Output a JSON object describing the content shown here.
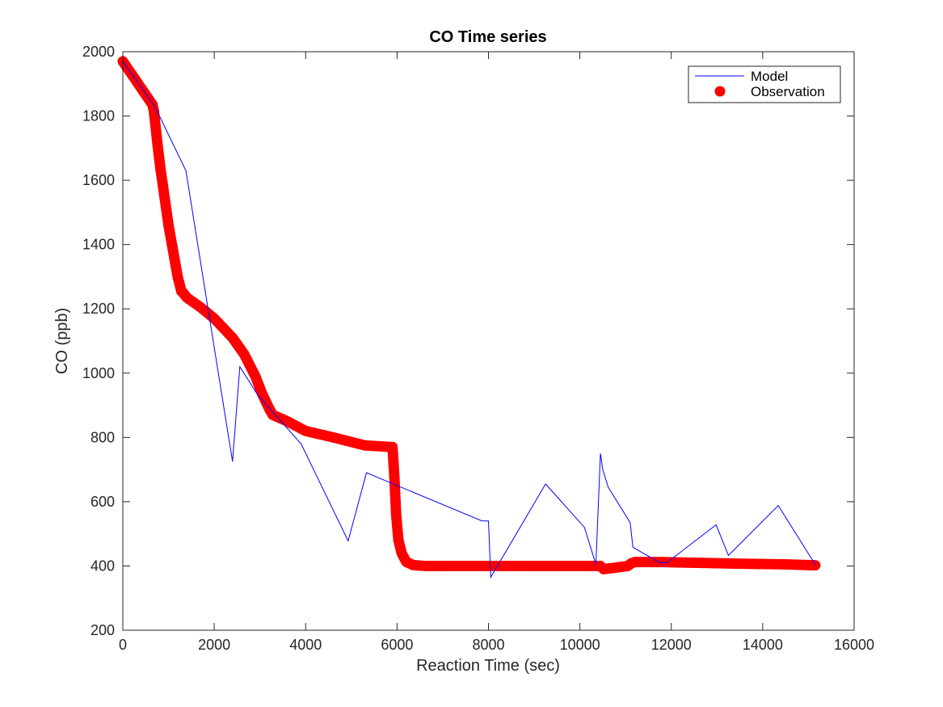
{
  "chart_data": {
    "type": "line",
    "title": "CO Time series",
    "xlabel": "Reaction Time (sec)",
    "ylabel": "CO (ppb)",
    "xlim": [
      0,
      16000
    ],
    "ylim": [
      200,
      2000
    ],
    "xticks": [
      0,
      2000,
      4000,
      6000,
      8000,
      10000,
      12000,
      14000,
      16000
    ],
    "yticks": [
      200,
      400,
      600,
      800,
      1000,
      1200,
      1400,
      1600,
      1800,
      2000
    ],
    "grid": false,
    "legend_position": "top-right",
    "series": [
      {
        "name": "Model",
        "style": "line",
        "color": "#0000ff",
        "x": [
          0,
          700,
          1380,
          2400,
          2560,
          2960,
          3900,
          4930,
          5330,
          7860,
          8000,
          8050,
          9250,
          10100,
          10350,
          10450,
          10500,
          10620,
          11100,
          11160,
          11750,
          11900,
          12980,
          13250,
          14340,
          15160
        ],
        "y": [
          1970,
          1830,
          1630,
          725,
          1020,
          930,
          780,
          478,
          690,
          540,
          540,
          365,
          655,
          520,
          405,
          750,
          700,
          645,
          535,
          458,
          410,
          410,
          528,
          433,
          588,
          402
        ]
      },
      {
        "name": "Observation",
        "style": "scatter",
        "color": "#ff0000",
        "x": [
          0,
          650,
          680,
          760,
          820,
          900,
          1000,
          1100,
          1200,
          1280,
          1330,
          1400,
          1700,
          2000,
          2400,
          2650,
          2900,
          3050,
          3200,
          3280,
          3600,
          4000,
          4600,
          5300,
          5900,
          5940,
          5980,
          6030,
          6100,
          6200,
          6350,
          6600,
          7000,
          8000,
          9000,
          10000,
          10450,
          10520,
          10800,
          11050,
          11120,
          11200,
          11800,
          12500,
          13500,
          14500,
          15150
        ],
        "y": [
          1970,
          1835,
          1815,
          1710,
          1640,
          1560,
          1460,
          1380,
          1300,
          1255,
          1248,
          1235,
          1205,
          1170,
          1110,
          1060,
          990,
          935,
          890,
          870,
          850,
          820,
          800,
          775,
          770,
          680,
          560,
          480,
          440,
          413,
          403,
          400,
          400,
          400,
          400,
          400,
          400,
          390,
          395,
          400,
          408,
          412,
          412,
          410,
          407,
          405,
          402
        ]
      }
    ]
  }
}
